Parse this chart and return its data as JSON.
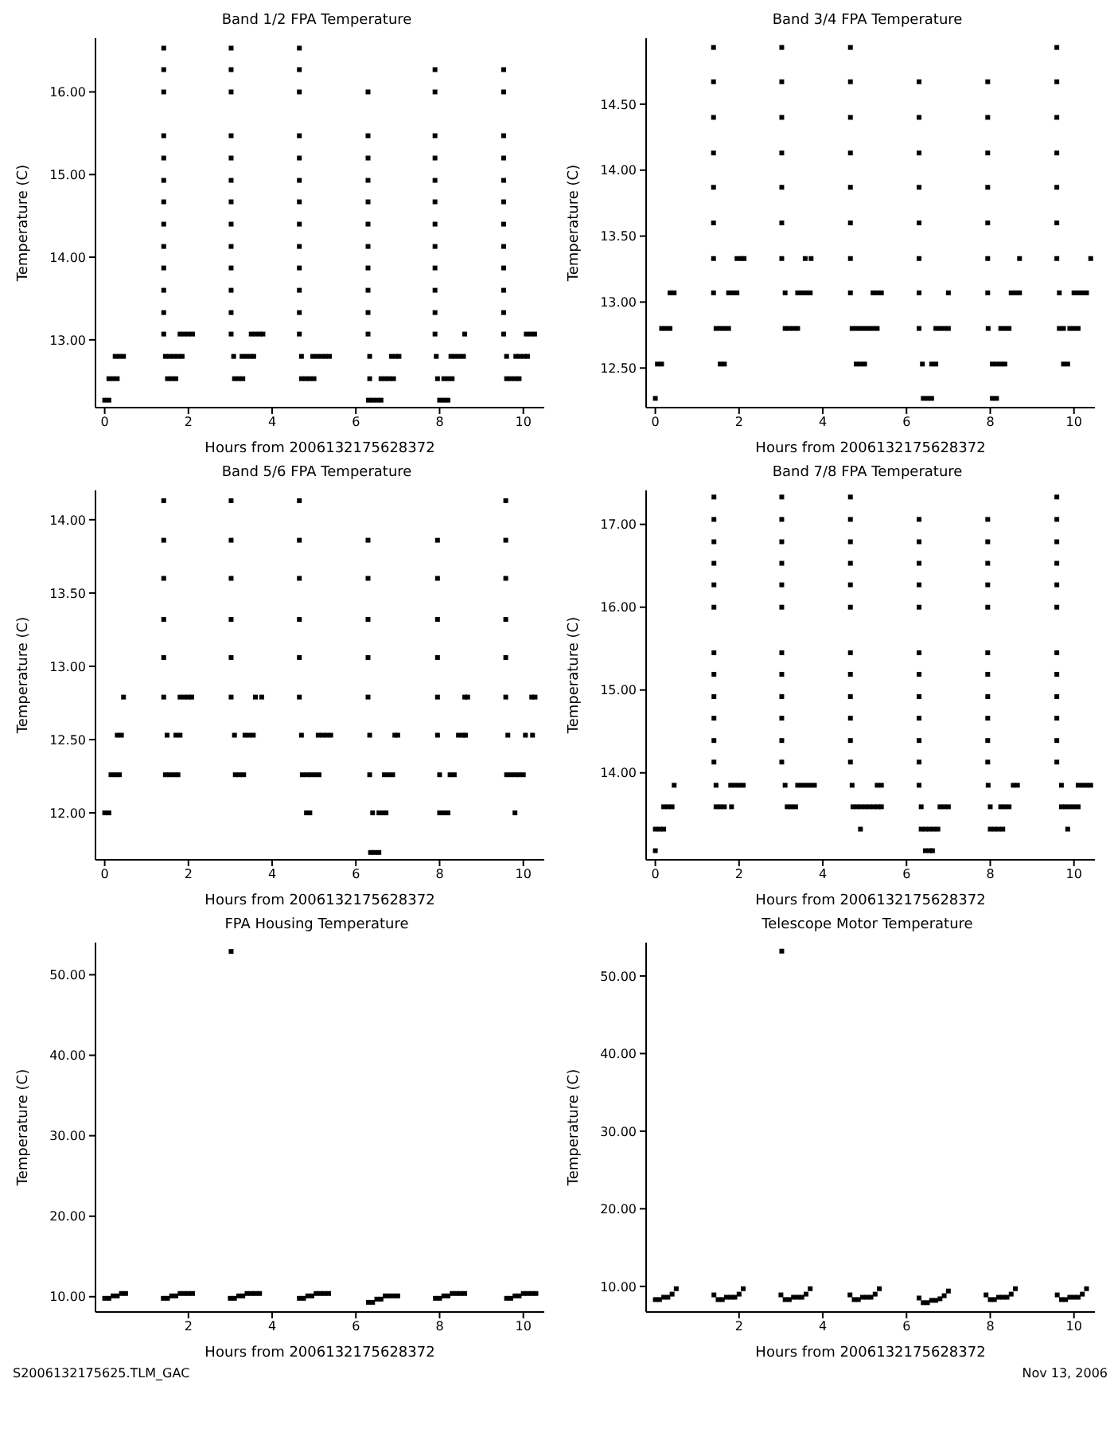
{
  "chart_data": [
    {
      "type": "scatter",
      "title": "Band 1/2 FPA Temperature",
      "xlabel": "Hours from 2006132175628372",
      "ylabel": "Temperature (C)",
      "marker": "square",
      "xlim": [
        -0.22,
        10.5
      ],
      "xticks": [
        0,
        2,
        4,
        6,
        8,
        10
      ],
      "ylim": [
        12.18,
        16.65
      ],
      "yticks": [
        {
          "value": 13,
          "label": "13.00"
        },
        {
          "value": 14,
          "label": "14.00"
        },
        {
          "value": 15,
          "label": "15.00"
        },
        {
          "value": 16,
          "label": "16.00"
        }
      ],
      "series": [
        {
          "color": "#000000",
          "x": [
            0.0,
            0.1,
            6.3,
            6.4,
            6.5,
            6.6,
            8.0,
            8.1,
            8.2
          ],
          "values": [
            12.27,
            12.27,
            12.27,
            12.27,
            12.27,
            12.27,
            12.27,
            12.27,
            12.27
          ]
        },
        {
          "color": "#000000",
          "x": [
            0.1,
            0.2,
            0.3,
            1.5,
            1.6,
            1.7,
            3.1,
            3.2,
            3.3,
            4.7,
            4.8,
            4.9,
            5.0,
            6.33,
            6.6,
            6.7,
            6.8,
            6.9,
            7.95,
            8.1,
            8.2,
            8.3,
            9.6,
            9.7,
            9.8,
            9.9
          ],
          "values": [
            12.53,
            12.53,
            12.53,
            12.53,
            12.53,
            12.53,
            12.53,
            12.53,
            12.53,
            12.53,
            12.53,
            12.53,
            12.53,
            12.53,
            12.53,
            12.53,
            12.53,
            12.53,
            12.53,
            12.53,
            12.53,
            12.53,
            12.53,
            12.53,
            12.53,
            12.53
          ]
        },
        {
          "color": "#000000",
          "x": [
            0.25,
            0.35,
            0.45,
            1.45,
            1.55,
            1.65,
            1.75,
            1.85,
            3.08,
            3.28,
            3.38,
            3.48,
            3.56,
            4.7,
            4.97,
            5.07,
            5.17,
            5.27,
            5.37,
            6.33,
            6.85,
            6.95,
            7.03,
            7.92,
            8.27,
            8.37,
            8.47,
            8.57,
            9.6,
            9.82,
            9.92,
            10.02,
            10.1
          ],
          "values": [
            12.8,
            12.8,
            12.8,
            12.8,
            12.8,
            12.8,
            12.8,
            12.8,
            12.8,
            12.8,
            12.8,
            12.8,
            12.8,
            12.8,
            12.8,
            12.8,
            12.8,
            12.8,
            12.8,
            12.8,
            12.8,
            12.8,
            12.8,
            12.8,
            12.8,
            12.8,
            12.8,
            12.8,
            12.8,
            12.8,
            12.8,
            12.8,
            12.8
          ]
        },
        {
          "color": "#000000",
          "x": [
            1.41,
            1.8,
            1.9,
            2.0,
            2.1,
            3.02,
            3.5,
            3.6,
            3.7,
            3.78,
            4.65,
            6.29,
            7.89,
            8.6,
            9.53,
            10.07,
            10.17,
            10.27
          ],
          "values": [
            13.07,
            13.07,
            13.07,
            13.07,
            13.07,
            13.07,
            13.07,
            13.07,
            13.07,
            13.07,
            13.07,
            13.07,
            13.07,
            13.07,
            13.07,
            13.07,
            13.07,
            13.07
          ]
        },
        {
          "color": "#000000",
          "x": [
            1.41,
            3.02,
            4.65,
            6.29,
            7.89,
            9.53
          ],
          "values": [
            13.33,
            13.33,
            13.33,
            13.33,
            13.33,
            13.33
          ]
        },
        {
          "color": "#000000",
          "x": [
            1.41,
            3.02,
            4.65,
            6.29,
            7.89,
            9.53
          ],
          "values": [
            13.6,
            13.6,
            13.6,
            13.6,
            13.6,
            13.6
          ]
        },
        {
          "color": "#000000",
          "x": [
            1.41,
            3.02,
            4.65,
            6.29,
            7.89,
            9.53
          ],
          "values": [
            13.87,
            13.87,
            13.87,
            13.87,
            13.87,
            13.87
          ]
        },
        {
          "color": "#000000",
          "x": [
            1.41,
            3.02,
            4.65,
            6.29,
            7.89,
            9.53
          ],
          "values": [
            14.13,
            14.13,
            14.13,
            14.13,
            14.13,
            14.13
          ]
        },
        {
          "color": "#000000",
          "x": [
            1.41,
            3.02,
            4.65,
            6.29,
            7.89,
            9.53
          ],
          "values": [
            14.4,
            14.4,
            14.4,
            14.4,
            14.4,
            14.4
          ]
        },
        {
          "color": "#000000",
          "x": [
            1.41,
            3.02,
            4.65,
            6.29,
            7.89,
            9.53
          ],
          "values": [
            14.67,
            14.67,
            14.67,
            14.67,
            14.67,
            14.67
          ]
        },
        {
          "color": "#000000",
          "x": [
            1.41,
            3.02,
            4.65,
            6.29,
            7.89,
            9.53
          ],
          "values": [
            14.93,
            14.93,
            14.93,
            14.93,
            14.93,
            14.93
          ]
        },
        {
          "color": "#000000",
          "x": [
            1.41,
            3.02,
            4.65,
            6.29,
            7.89,
            9.53
          ],
          "values": [
            15.2,
            15.2,
            15.2,
            15.2,
            15.2,
            15.2
          ]
        },
        {
          "color": "#000000",
          "x": [
            1.41,
            3.02,
            4.65,
            6.29,
            7.89,
            9.53
          ],
          "values": [
            15.47,
            15.47,
            15.47,
            15.47,
            15.47,
            15.47
          ]
        },
        {
          "color": "#000000",
          "x": [
            1.41,
            3.02,
            4.65,
            6.29,
            7.89,
            9.53
          ],
          "values": [
            16.0,
            16.0,
            16.0,
            16.0,
            16.0,
            16.0
          ]
        },
        {
          "color": "#000000",
          "x": [
            1.41,
            3.02,
            4.65,
            7.89,
            9.53
          ],
          "values": [
            16.27,
            16.27,
            16.27,
            16.27,
            16.27
          ]
        },
        {
          "color": "#000000",
          "x": [
            1.41,
            3.02,
            4.65
          ],
          "values": [
            16.53,
            16.53,
            16.53
          ]
        }
      ]
    },
    {
      "type": "scatter",
      "title": "Band 3/4 FPA Temperature",
      "xlabel": "Hours from 2006132175628372",
      "ylabel": "Temperature (C)",
      "marker": "square",
      "xlim": [
        -0.22,
        10.5
      ],
      "xticks": [
        0,
        2,
        4,
        6,
        8,
        10
      ],
      "ylim": [
        12.2,
        15.0
      ],
      "yticks": [
        {
          "value": 12.5,
          "label": "12.50"
        },
        {
          "value": 13,
          "label": "13.00"
        },
        {
          "value": 13.5,
          "label": "13.50"
        },
        {
          "value": 14,
          "label": "14.00"
        },
        {
          "value": 14.5,
          "label": "14.50"
        }
      ],
      "series": [
        {
          "color": "#000000",
          "x": [
            0.0,
            6.4,
            6.5,
            6.6,
            8.05,
            8.15
          ],
          "values": [
            12.27,
            12.27,
            12.27,
            12.27,
            12.27,
            12.27
          ]
        },
        {
          "color": "#000000",
          "x": [
            0.05,
            0.15,
            1.55,
            1.65,
            4.8,
            4.9,
            5.0,
            6.38,
            6.6,
            6.7,
            8.05,
            8.15,
            8.25,
            8.35,
            9.75,
            9.85
          ],
          "values": [
            12.53,
            12.53,
            12.53,
            12.53,
            12.53,
            12.53,
            12.53,
            12.53,
            12.53,
            12.53,
            12.53,
            12.53,
            12.53,
            12.53,
            12.53,
            12.53
          ]
        },
        {
          "color": "#000000",
          "x": [
            0.15,
            0.25,
            0.35,
            1.45,
            1.55,
            1.65,
            1.75,
            3.1,
            3.2,
            3.3,
            3.4,
            4.7,
            4.8,
            4.9,
            5.0,
            5.1,
            5.2,
            5.3,
            6.3,
            6.7,
            6.8,
            6.9,
            7.0,
            7.95,
            8.25,
            8.35,
            8.45,
            9.65,
            9.75,
            9.9,
            10.0,
            10.1
          ],
          "values": [
            12.8,
            12.8,
            12.8,
            12.8,
            12.8,
            12.8,
            12.8,
            12.8,
            12.8,
            12.8,
            12.8,
            12.8,
            12.8,
            12.8,
            12.8,
            12.8,
            12.8,
            12.8,
            12.8,
            12.8,
            12.8,
            12.8,
            12.8,
            12.8,
            12.8,
            12.8,
            12.8,
            12.8,
            12.8,
            12.8,
            12.8,
            12.8
          ]
        },
        {
          "color": "#000000",
          "x": [
            0.35,
            0.45,
            1.39,
            1.75,
            1.85,
            1.95,
            3.1,
            3.4,
            3.5,
            3.6,
            3.7,
            4.66,
            5.2,
            5.3,
            5.4,
            6.3,
            7.0,
            7.94,
            8.5,
            8.6,
            8.7,
            9.65,
            10.0,
            10.1,
            10.2,
            10.3
          ],
          "values": [
            13.07,
            13.07,
            13.07,
            13.07,
            13.07,
            13.07,
            13.07,
            13.07,
            13.07,
            13.07,
            13.07,
            13.07,
            13.07,
            13.07,
            13.07,
            13.07,
            13.07,
            13.07,
            13.07,
            13.07,
            13.07,
            13.07,
            13.07,
            13.07,
            13.07,
            13.07
          ]
        },
        {
          "color": "#000000",
          "x": [
            1.39,
            1.95,
            2.05,
            2.12,
            3.02,
            3.58,
            3.72,
            4.66,
            6.3,
            7.94,
            8.7,
            9.59,
            10.4
          ],
          "values": [
            13.33,
            13.33,
            13.33,
            13.33,
            13.33,
            13.33,
            13.33,
            13.33,
            13.33,
            13.33,
            13.33,
            13.33,
            13.33
          ]
        },
        {
          "color": "#000000",
          "x": [
            1.39,
            3.02,
            4.66,
            6.3,
            7.94,
            9.59
          ],
          "values": [
            13.6,
            13.6,
            13.6,
            13.6,
            13.6,
            13.6
          ]
        },
        {
          "color": "#000000",
          "x": [
            1.39,
            3.02,
            4.66,
            6.3,
            7.94,
            9.59
          ],
          "values": [
            13.87,
            13.87,
            13.87,
            13.87,
            13.87,
            13.87
          ]
        },
        {
          "color": "#000000",
          "x": [
            1.39,
            3.02,
            4.66,
            6.3,
            7.94,
            9.59
          ],
          "values": [
            14.13,
            14.13,
            14.13,
            14.13,
            14.13,
            14.13
          ]
        },
        {
          "color": "#000000",
          "x": [
            1.39,
            3.02,
            4.66,
            6.3,
            7.94,
            9.59
          ],
          "values": [
            14.4,
            14.4,
            14.4,
            14.4,
            14.4,
            14.4
          ]
        },
        {
          "color": "#000000",
          "x": [
            1.39,
            3.02,
            4.66,
            6.3,
            7.94,
            9.59
          ],
          "values": [
            14.67,
            14.67,
            14.67,
            14.67,
            14.67,
            14.67
          ]
        },
        {
          "color": "#000000",
          "x": [
            1.39,
            3.02,
            4.66,
            9.59
          ],
          "values": [
            14.93,
            14.93,
            14.93,
            14.93
          ]
        }
      ]
    },
    {
      "type": "scatter",
      "title": "Band 5/6 FPA Temperature",
      "xlabel": "Hours from 2006132175628372",
      "ylabel": "Temperature (C)",
      "marker": "square",
      "xlim": [
        -0.22,
        10.5
      ],
      "xticks": [
        0,
        2,
        4,
        6,
        8,
        10
      ],
      "ylim": [
        11.68,
        14.2
      ],
      "yticks": [
        {
          "value": 12,
          "label": "12.00"
        },
        {
          "value": 12.5,
          "label": "12.50"
        },
        {
          "value": 13,
          "label": "13.00"
        },
        {
          "value": 13.5,
          "label": "13.50"
        },
        {
          "value": 14,
          "label": "14.00"
        }
      ],
      "series": [
        {
          "color": "#000000",
          "x": [
            6.35,
            6.45,
            6.55
          ],
          "values": [
            11.73,
            11.73,
            11.73
          ]
        },
        {
          "color": "#000000",
          "x": [
            0.0,
            0.1,
            4.82,
            4.9,
            6.4,
            6.55,
            6.65,
            6.72,
            8.0,
            8.1,
            8.2,
            9.8
          ],
          "values": [
            12.0,
            12.0,
            12.0,
            12.0,
            12.0,
            12.0,
            12.0,
            12.0,
            12.0,
            12.0,
            12.0,
            12.0
          ]
        },
        {
          "color": "#000000",
          "x": [
            0.15,
            0.25,
            0.35,
            1.45,
            1.55,
            1.65,
            1.75,
            3.12,
            3.22,
            3.32,
            4.72,
            4.82,
            4.92,
            5.02,
            5.12,
            6.33,
            6.68,
            6.78,
            6.88,
            8.0,
            8.25,
            8.35,
            9.6,
            9.7,
            9.8,
            9.9,
            10.0
          ],
          "values": [
            12.26,
            12.26,
            12.26,
            12.26,
            12.26,
            12.26,
            12.26,
            12.26,
            12.26,
            12.26,
            12.26,
            12.26,
            12.26,
            12.26,
            12.26,
            12.26,
            12.26,
            12.26,
            12.26,
            12.26,
            12.26,
            12.26,
            12.26,
            12.26,
            12.26,
            12.26,
            12.26
          ]
        },
        {
          "color": "#000000",
          "x": [
            0.3,
            0.4,
            1.49,
            1.7,
            1.8,
            3.1,
            3.35,
            3.45,
            3.55,
            4.7,
            5.1,
            5.2,
            5.3,
            5.4,
            6.33,
            6.93,
            7.0,
            7.95,
            8.45,
            8.55,
            8.62,
            9.63,
            10.05,
            10.22
          ],
          "values": [
            12.53,
            12.53,
            12.53,
            12.53,
            12.53,
            12.53,
            12.53,
            12.53,
            12.53,
            12.53,
            12.53,
            12.53,
            12.53,
            12.53,
            12.53,
            12.53,
            12.53,
            12.53,
            12.53,
            12.53,
            12.53,
            12.53,
            12.53,
            12.53
          ]
        },
        {
          "color": "#000000",
          "x": [
            0.45,
            1.41,
            1.8,
            1.9,
            2.0,
            2.08,
            3.02,
            3.6,
            3.75,
            4.65,
            6.29,
            7.95,
            8.6,
            8.67,
            9.58,
            10.2,
            10.28
          ],
          "values": [
            12.79,
            12.79,
            12.79,
            12.79,
            12.79,
            12.79,
            12.79,
            12.79,
            12.79,
            12.79,
            12.79,
            12.79,
            12.79,
            12.79,
            12.79,
            12.79,
            12.79
          ]
        },
        {
          "color": "#000000",
          "x": [
            1.41,
            3.02,
            4.65,
            6.29,
            7.95,
            9.58
          ],
          "values": [
            13.06,
            13.06,
            13.06,
            13.06,
            13.06,
            13.06
          ]
        },
        {
          "color": "#000000",
          "x": [
            1.41,
            3.02,
            4.65,
            6.29,
            7.95,
            9.58
          ],
          "values": [
            13.32,
            13.32,
            13.32,
            13.32,
            13.32,
            13.32
          ]
        },
        {
          "color": "#000000",
          "x": [
            1.41,
            3.02,
            4.65,
            6.29,
            7.95,
            9.58
          ],
          "values": [
            13.6,
            13.6,
            13.6,
            13.6,
            13.6,
            13.6
          ]
        },
        {
          "color": "#000000",
          "x": [
            1.41,
            3.02,
            4.65,
            6.29,
            7.95,
            9.58
          ],
          "values": [
            13.86,
            13.86,
            13.86,
            13.86,
            13.86,
            13.86
          ]
        },
        {
          "color": "#000000",
          "x": [
            1.41,
            3.02,
            4.65,
            9.58
          ],
          "values": [
            14.13,
            14.13,
            14.13,
            14.13
          ]
        }
      ]
    },
    {
      "type": "scatter",
      "title": "Band 7/8 FPA Temperature",
      "xlabel": "Hours from 2006132175628372",
      "ylabel": "Temperature (C)",
      "marker": "square",
      "xlim": [
        -0.22,
        10.5
      ],
      "xticks": [
        0,
        2,
        4,
        6,
        8,
        10
      ],
      "ylim": [
        12.95,
        17.41
      ],
      "yticks": [
        {
          "value": 14,
          "label": "14.00"
        },
        {
          "value": 15,
          "label": "15.00"
        },
        {
          "value": 16,
          "label": "16.00"
        },
        {
          "value": 17,
          "label": "17.00"
        }
      ],
      "series": [
        {
          "color": "#000000",
          "x": [
            0.0,
            6.45,
            6.55,
            6.62
          ],
          "values": [
            13.06,
            13.06,
            13.06,
            13.06
          ]
        },
        {
          "color": "#000000",
          "x": [
            0.0,
            0.1,
            0.2,
            4.9,
            6.35,
            6.45,
            6.55,
            6.65,
            6.75,
            8.0,
            8.1,
            8.2,
            8.3,
            9.85
          ],
          "values": [
            13.32,
            13.32,
            13.32,
            13.32,
            13.32,
            13.32,
            13.32,
            13.32,
            13.32,
            13.32,
            13.32,
            13.32,
            13.32,
            13.32
          ]
        },
        {
          "color": "#000000",
          "x": [
            0.2,
            0.3,
            0.4,
            1.45,
            1.55,
            1.65,
            1.82,
            3.15,
            3.25,
            3.35,
            4.72,
            4.82,
            4.92,
            5.02,
            5.12,
            5.22,
            5.32,
            5.4,
            6.35,
            6.8,
            6.9,
            7.0,
            8.0,
            8.25,
            8.35,
            8.45,
            9.7,
            9.8,
            9.9,
            10.0,
            10.1
          ],
          "values": [
            13.59,
            13.59,
            13.59,
            13.59,
            13.59,
            13.59,
            13.59,
            13.59,
            13.59,
            13.59,
            13.59,
            13.59,
            13.59,
            13.59,
            13.59,
            13.59,
            13.59,
            13.59,
            13.59,
            13.59,
            13.59,
            13.59,
            13.59,
            13.59,
            13.59,
            13.59,
            13.59,
            13.59,
            13.59,
            13.59,
            13.59
          ]
        },
        {
          "color": "#000000",
          "x": [
            0.45,
            1.45,
            1.8,
            1.9,
            2.0,
            2.1,
            3.1,
            3.4,
            3.5,
            3.6,
            3.7,
            3.8,
            4.7,
            5.3,
            5.4,
            6.3,
            7.95,
            8.55,
            8.65,
            9.7,
            10.1,
            10.2,
            10.3,
            10.4
          ],
          "values": [
            13.85,
            13.85,
            13.85,
            13.85,
            13.85,
            13.85,
            13.85,
            13.85,
            13.85,
            13.85,
            13.85,
            13.85,
            13.85,
            13.85,
            13.85,
            13.85,
            13.85,
            13.85,
            13.85,
            13.85,
            13.85,
            13.85,
            13.85,
            13.85
          ]
        },
        {
          "color": "#000000",
          "x": [
            1.4,
            3.02,
            4.66,
            6.3,
            7.94,
            9.59
          ],
          "values": [
            14.13,
            14.13,
            14.13,
            14.13,
            14.13,
            14.13
          ]
        },
        {
          "color": "#000000",
          "x": [
            1.4,
            3.02,
            4.66,
            6.3,
            7.94,
            9.59
          ],
          "values": [
            14.39,
            14.39,
            14.39,
            14.39,
            14.39,
            14.39
          ]
        },
        {
          "color": "#000000",
          "x": [
            1.4,
            3.02,
            4.66,
            6.3,
            7.94,
            9.59
          ],
          "values": [
            14.66,
            14.66,
            14.66,
            14.66,
            14.66,
            14.66
          ]
        },
        {
          "color": "#000000",
          "x": [
            1.4,
            3.02,
            4.66,
            6.3,
            7.94,
            9.59
          ],
          "values": [
            14.92,
            14.92,
            14.92,
            14.92,
            14.92,
            14.92
          ]
        },
        {
          "color": "#000000",
          "x": [
            1.4,
            3.02,
            4.66,
            6.3,
            7.94,
            9.59
          ],
          "values": [
            15.19,
            15.19,
            15.19,
            15.19,
            15.19,
            15.19
          ]
        },
        {
          "color": "#000000",
          "x": [
            1.4,
            3.02,
            4.66,
            6.3,
            7.94,
            9.59
          ],
          "values": [
            15.45,
            15.45,
            15.45,
            15.45,
            15.45,
            15.45
          ]
        },
        {
          "color": "#000000",
          "x": [
            1.4,
            3.02,
            4.66,
            6.3,
            7.94,
            9.59
          ],
          "values": [
            16.0,
            16.0,
            16.0,
            16.0,
            16.0,
            16.0
          ]
        },
        {
          "color": "#000000",
          "x": [
            1.4,
            3.02,
            4.66,
            6.3,
            7.94,
            9.59
          ],
          "values": [
            16.27,
            16.27,
            16.27,
            16.27,
            16.27,
            16.27
          ]
        },
        {
          "color": "#000000",
          "x": [
            1.4,
            3.02,
            4.66,
            6.3,
            7.94,
            9.59
          ],
          "values": [
            16.53,
            16.53,
            16.53,
            16.53,
            16.53,
            16.53
          ]
        },
        {
          "color": "#000000",
          "x": [
            1.4,
            3.02,
            4.66,
            6.3,
            7.94,
            9.59
          ],
          "values": [
            16.79,
            16.79,
            16.79,
            16.79,
            16.79,
            16.79
          ]
        },
        {
          "color": "#000000",
          "x": [
            1.4,
            3.02,
            4.66,
            6.3,
            7.94,
            9.59
          ],
          "values": [
            17.06,
            17.06,
            17.06,
            17.06,
            17.06,
            17.06
          ]
        },
        {
          "color": "#000000",
          "x": [
            1.4,
            3.02,
            4.66,
            9.59
          ],
          "values": [
            17.33,
            17.33,
            17.33,
            17.33
          ]
        }
      ]
    },
    {
      "type": "scatter",
      "title": "FPA Housing Temperature",
      "xlabel": "Hours from 2006132175628372",
      "ylabel": "Temperature (C)",
      "marker": "square",
      "annotations": [
        "S2006132175625.TLM_GAC"
      ],
      "xlim": [
        -0.22,
        10.5
      ],
      "xticks": [
        2,
        4,
        6,
        8,
        10
      ],
      "ylim": [
        8.1,
        54.0
      ],
      "yticks": [
        {
          "value": 10,
          "label": "10.00"
        },
        {
          "value": 20,
          "label": "20.00"
        },
        {
          "value": 30,
          "label": "30.00"
        },
        {
          "value": 40,
          "label": "40.00"
        },
        {
          "value": 50,
          "label": "50.00"
        }
      ],
      "series": [
        {
          "color": "#000000",
          "x": [
            0.0,
            0.1,
            0.2,
            0.3,
            0.4,
            0.5,
            1.4,
            1.5,
            1.6,
            1.7,
            1.8,
            1.9,
            2.0,
            2.1,
            3.0,
            3.1,
            3.2,
            3.3,
            3.4,
            3.5,
            3.6,
            3.7,
            4.65,
            4.75,
            4.85,
            4.95,
            5.05,
            5.15,
            5.25,
            5.35,
            6.3,
            6.4,
            6.5,
            6.6,
            6.7,
            6.8,
            6.9,
            7.0,
            7.9,
            8.0,
            8.1,
            8.2,
            8.3,
            8.4,
            8.5,
            8.6,
            9.6,
            9.7,
            9.8,
            9.9,
            10.0,
            10.1,
            10.2,
            10.3
          ],
          "values": [
            9.8,
            9.8,
            10.1,
            10.1,
            10.4,
            10.4,
            9.8,
            9.8,
            10.1,
            10.1,
            10.4,
            10.4,
            10.4,
            10.4,
            9.8,
            9.8,
            10.1,
            10.1,
            10.4,
            10.4,
            10.4,
            10.4,
            9.8,
            9.8,
            10.1,
            10.1,
            10.4,
            10.4,
            10.4,
            10.4,
            9.3,
            9.3,
            9.7,
            9.7,
            10.1,
            10.1,
            10.1,
            10.1,
            9.8,
            9.8,
            10.1,
            10.1,
            10.4,
            10.4,
            10.4,
            10.4,
            9.8,
            9.8,
            10.1,
            10.1,
            10.4,
            10.4,
            10.4,
            10.4
          ]
        },
        {
          "color": "#000000",
          "x": [
            3.02
          ],
          "values": [
            52.9
          ]
        }
      ]
    },
    {
      "type": "scatter",
      "title": "Telescope Motor Temperature",
      "xlabel": "Hours from 2006132175628372",
      "ylabel": "Temperature (C)",
      "marker": "square",
      "annotations": [
        "Nov 13, 2006"
      ],
      "xlim": [
        -0.22,
        10.5
      ],
      "xticks": [
        2,
        4,
        6,
        8,
        10
      ],
      "ylim": [
        6.7,
        54.3
      ],
      "yticks": [
        {
          "value": 10,
          "label": "10.00"
        },
        {
          "value": 20,
          "label": "20.00"
        },
        {
          "value": 30,
          "label": "30.00"
        },
        {
          "value": 40,
          "label": "40.00"
        },
        {
          "value": 50,
          "label": "50.00"
        }
      ],
      "series": [
        {
          "color": "#000000",
          "x": [
            0.0,
            0.1,
            0.2,
            0.3,
            0.4,
            0.5,
            1.4,
            1.5,
            1.6,
            1.7,
            1.8,
            1.9,
            2.0,
            2.1,
            3.0,
            3.1,
            3.2,
            3.3,
            3.4,
            3.5,
            3.6,
            3.7,
            4.65,
            4.75,
            4.85,
            4.95,
            5.05,
            5.15,
            5.25,
            5.35,
            6.3,
            6.4,
            6.5,
            6.6,
            6.7,
            6.8,
            6.9,
            7.0,
            7.9,
            8.0,
            8.1,
            8.2,
            8.3,
            8.4,
            8.5,
            8.6,
            9.6,
            9.7,
            9.8,
            9.9,
            10.0,
            10.1,
            10.2,
            10.3
          ],
          "values": [
            8.3,
            8.3,
            8.6,
            8.6,
            9.0,
            9.7,
            8.9,
            8.3,
            8.3,
            8.6,
            8.6,
            8.6,
            9.0,
            9.7,
            8.9,
            8.3,
            8.3,
            8.6,
            8.6,
            8.6,
            9.0,
            9.7,
            8.9,
            8.3,
            8.3,
            8.6,
            8.6,
            8.6,
            9.0,
            9.7,
            8.5,
            7.9,
            7.9,
            8.2,
            8.2,
            8.4,
            8.8,
            9.4,
            8.9,
            8.3,
            8.3,
            8.6,
            8.6,
            8.6,
            9.0,
            9.7,
            8.9,
            8.3,
            8.3,
            8.6,
            8.6,
            8.6,
            9.0,
            9.7
          ]
        },
        {
          "color": "#000000",
          "x": [
            3.02
          ],
          "values": [
            53.2
          ]
        }
      ]
    }
  ]
}
